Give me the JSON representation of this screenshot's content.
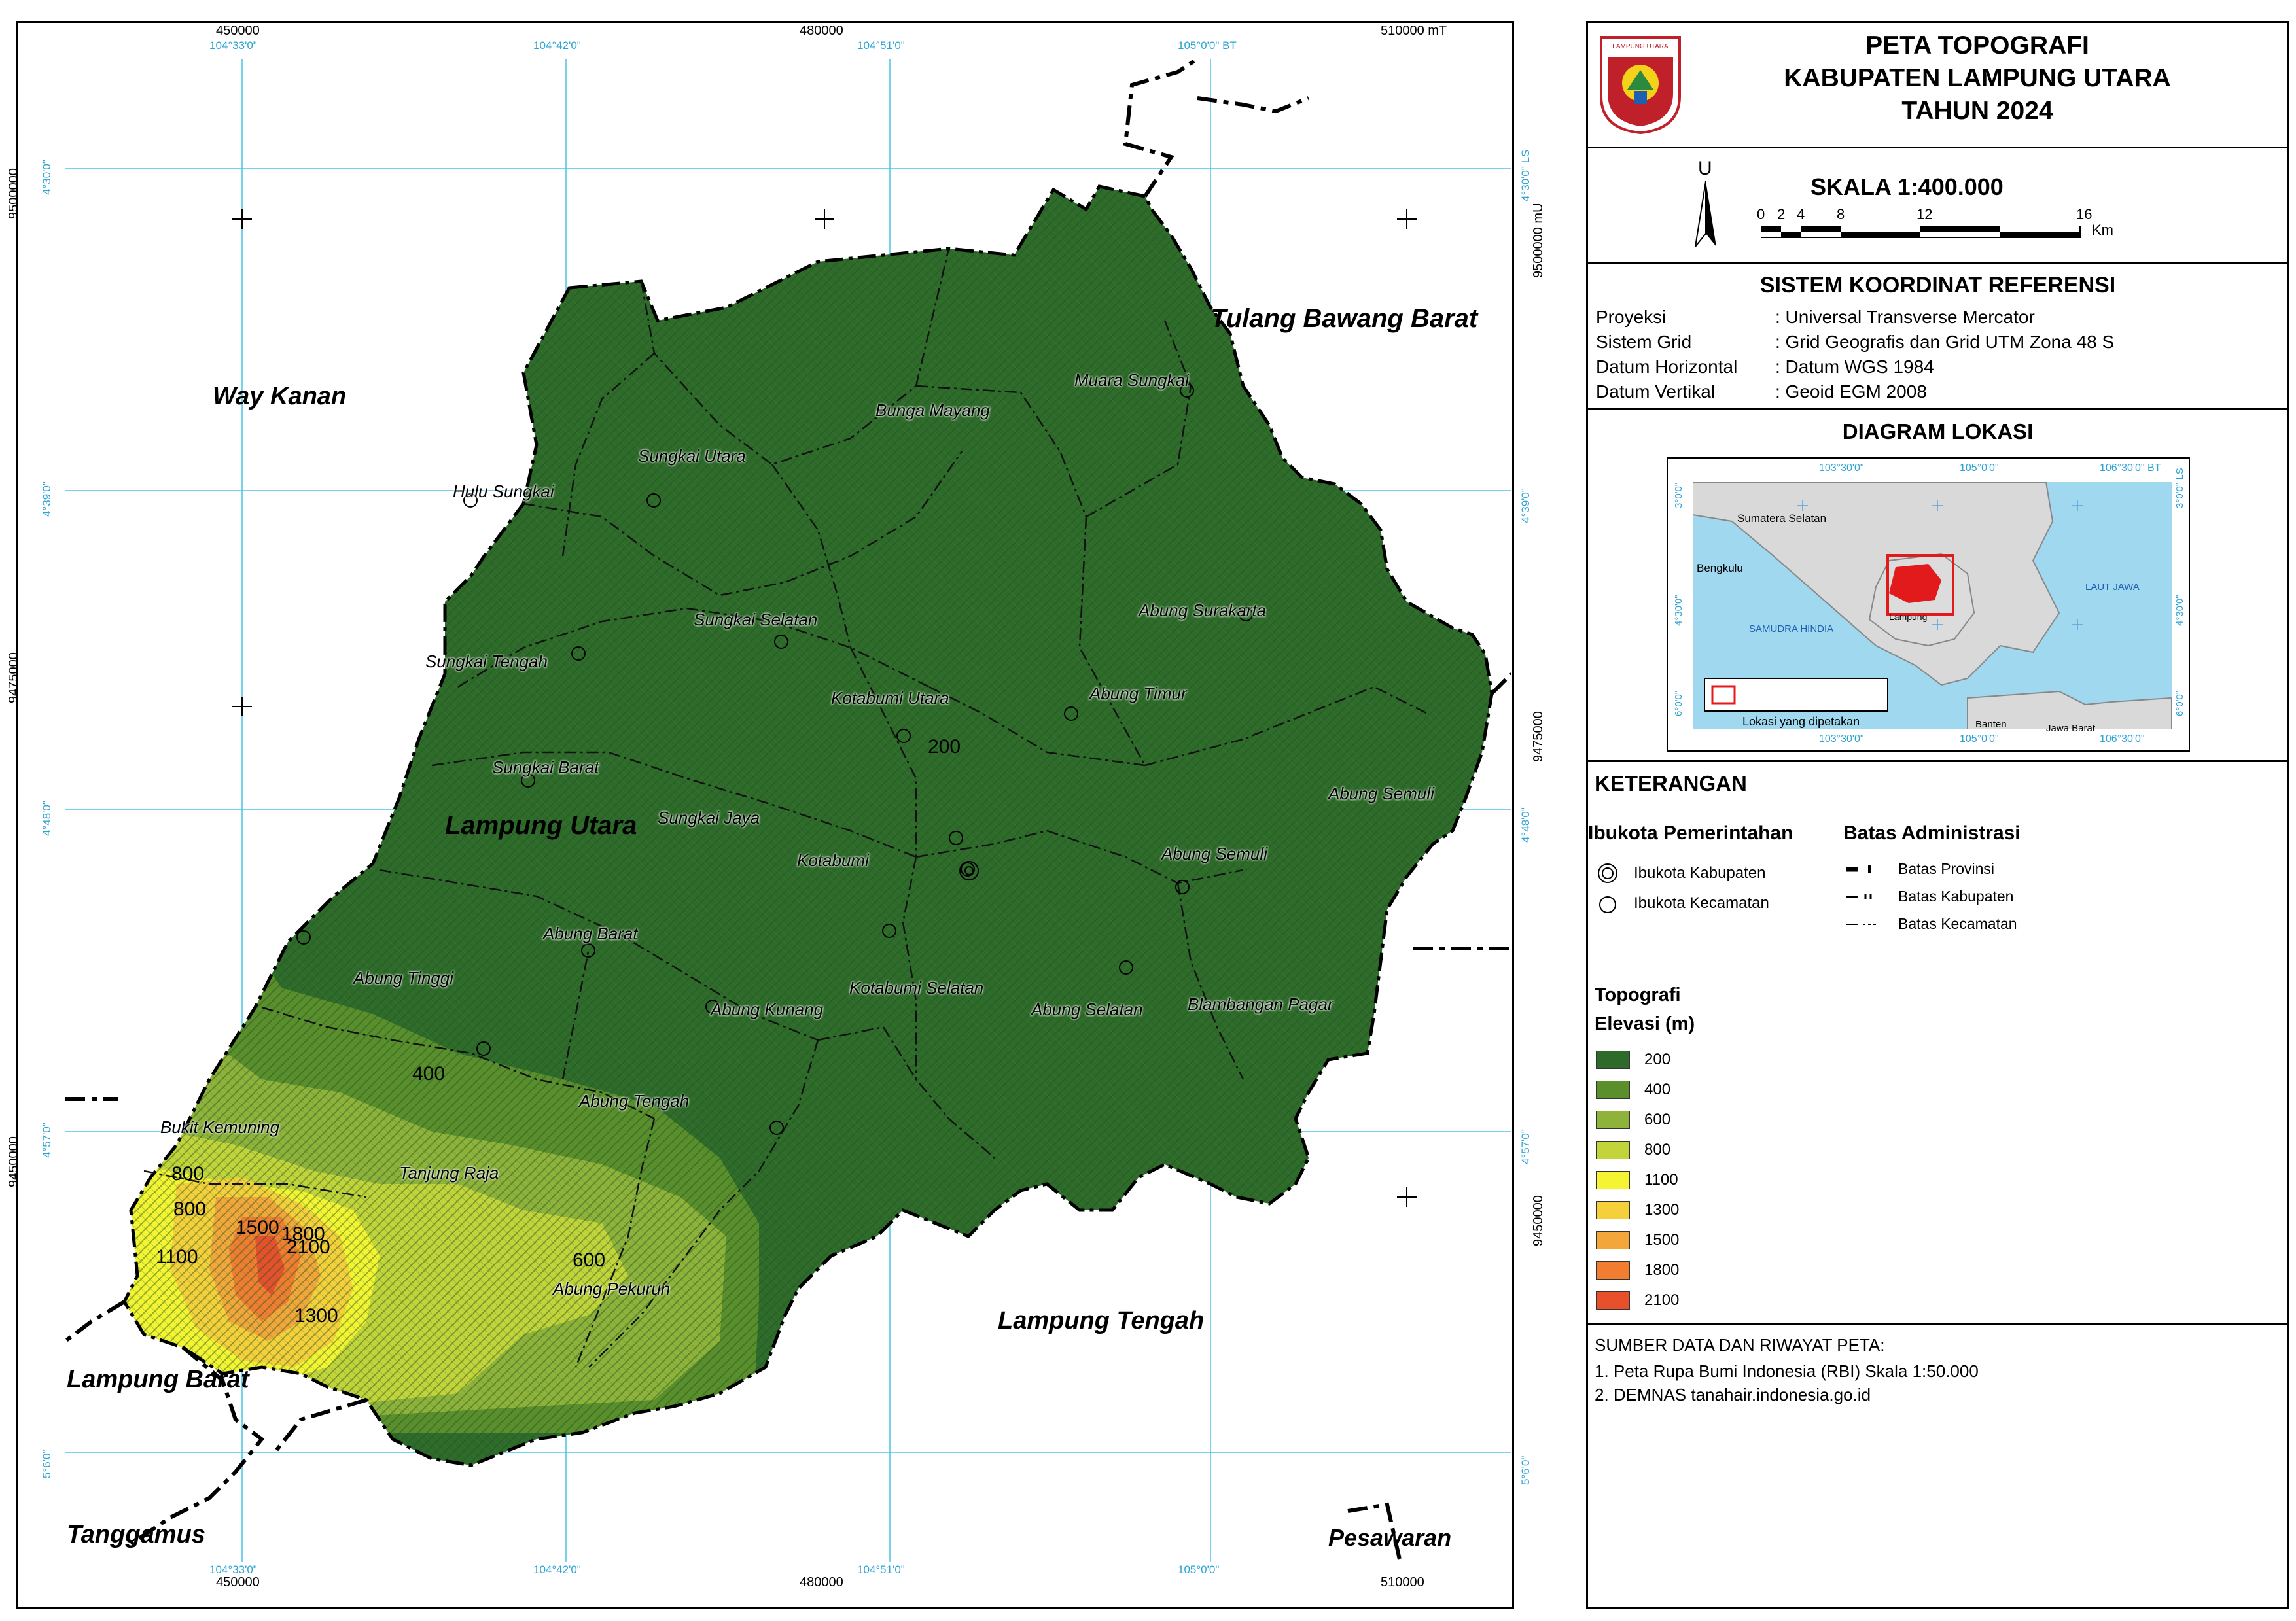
{
  "header": {
    "title_line1": "PETA TOPOGRAFI",
    "title_line2": "KABUPATEN LAMPUNG UTARA",
    "title_line3": "TAHUN 2024",
    "logo_text": "LAMPUNG UTARA"
  },
  "scale": {
    "north_letter": "U",
    "label": "SKALA 1:400.000",
    "ticks": [
      "0",
      "2",
      "4",
      "8",
      "12",
      "16"
    ],
    "unit": "Km"
  },
  "crs": {
    "title": "SISTEM KOORDINAT REFERENSI",
    "rows": [
      {
        "key": "Proyeksi",
        "value": ": Universal Transverse Mercator"
      },
      {
        "key": "Sistem Grid",
        "value": ": Grid Geografis dan Grid UTM Zona 48 S"
      },
      {
        "key": "Datum Horizontal",
        "value": ": Datum WGS 1984"
      },
      {
        "key": "Datum Vertikal",
        "value": ": Geoid EGM 2008"
      }
    ]
  },
  "location_diagram": {
    "title": "DIAGRAM LOKASI",
    "top_ticks": [
      "103°30'0\"",
      "105°0'0\"",
      "106°30'0\" BT"
    ],
    "bottom_ticks": [
      "103°30'0\"",
      "105°0'0\"",
      "106°30'0\""
    ],
    "left_ticks": [
      "3°0'0\"",
      "4°30'0\"",
      "6°0'0\""
    ],
    "right_ticks": [
      "3°0'0\" LS",
      "4°30'0\"",
      "6°0'0\""
    ],
    "places": {
      "sumsel": "Sumatera Selatan",
      "bengkulu": "Bengkulu",
      "samudra": "SAMUDRA HINDIA",
      "laut_jawa": "LAUT JAWA",
      "lampung": "Lampung",
      "banten": "Banten",
      "jabar": "Jawa Barat"
    },
    "legend_label": "Lokasi yang dipetakan"
  },
  "legend": {
    "title": "KETERANGAN",
    "capital_title": "Ibukota Pemerintahan",
    "capital_items": [
      "Ibukota Kabupaten",
      "Ibukota Kecamatan"
    ],
    "boundary_title": "Batas Administrasi",
    "boundary_items": [
      "Batas Provinsi",
      "Batas Kabupaten",
      "Batas Kecamatan"
    ],
    "topo_title": "Topografi",
    "elev_title": "Elevasi (m)",
    "elevation_classes": [
      {
        "label": "200",
        "color": "#2e6b2a"
      },
      {
        "label": "400",
        "color": "#5a8f2c"
      },
      {
        "label": "600",
        "color": "#8fb23a"
      },
      {
        "label": "800",
        "color": "#c3d43a"
      },
      {
        "label": "1100",
        "color": "#f4f432"
      },
      {
        "label": "1300",
        "color": "#f6d03a"
      },
      {
        "label": "1500",
        "color": "#f3a63a"
      },
      {
        "label": "1800",
        "color": "#f07d30"
      },
      {
        "label": "2100",
        "color": "#e8502c"
      }
    ]
  },
  "sources": {
    "title": "SUMBER DATA DAN RIWAYAT PETA:",
    "items": [
      "1. Peta Rupa Bumi Indonesia (RBI) Skala 1:50.000",
      "2. DEMNAS tanahair.indonesia.go.id"
    ]
  },
  "map": {
    "utm_top": [
      "450000",
      "480000",
      "510000 mT"
    ],
    "utm_bottom": [
      "450000",
      "480000",
      "510000"
    ],
    "utm_left": [
      "9500000",
      "9475000",
      "9450000"
    ],
    "utm_right": [
      "9500000 mU",
      "9475000",
      "9450000"
    ],
    "geo_top": [
      "104°33'0\"",
      "104°42'0\"",
      "104°51'0\"",
      "105°0'0\" BT"
    ],
    "geo_bottom": [
      "104°33'0\"",
      "104°42'0\"",
      "104°51'0\"",
      "105°0'0\""
    ],
    "geo_left": [
      "4°30'0\"",
      "4°39'0\"",
      "4°48'0\"",
      "4°57'0\"",
      "5°6'0\""
    ],
    "geo_right": [
      "4°30'0\" LS",
      "4°39'0\"",
      "4°48'0\"",
      "4°57'0\"",
      "5°6'0\""
    ],
    "neighbors": {
      "way_kanan": "Way Kanan",
      "tulang_bawang_barat": "Tulang Bawang Barat",
      "lampung_tengah": "Lampung Tengah",
      "lampung_barat": "Lampung Barat",
      "tanggamus": "Tanggamus",
      "pesawaran": "Pesawaran"
    },
    "regency_label": "Lampung Utara",
    "districts": [
      "Bunga Mayang",
      "Muara Sungkai",
      "Sungkai Utara",
      "Hulu Sungkai",
      "Sungkai Selatan",
      "Abung Surakarta",
      "Sungkai Tengah",
      "Kotabumi Utara",
      "Abung Timur",
      "Sungkai Barat",
      "Abung Semuli",
      "Sungkai Jaya",
      "Kotabumi",
      "Abung Semuli",
      "Abung Barat",
      "Abung Tinggi",
      "Kotabumi Selatan",
      "Abung Kunang",
      "Abung Selatan",
      "Blambangan Pagar",
      "Abung Tengah",
      "Bukit Kemuning",
      "Tanjung Raja",
      "Abung Pekurun"
    ],
    "contours": [
      "200",
      "400",
      "800",
      "800",
      "1500",
      "1800",
      "2100",
      "1100",
      "600",
      "1300"
    ]
  }
}
